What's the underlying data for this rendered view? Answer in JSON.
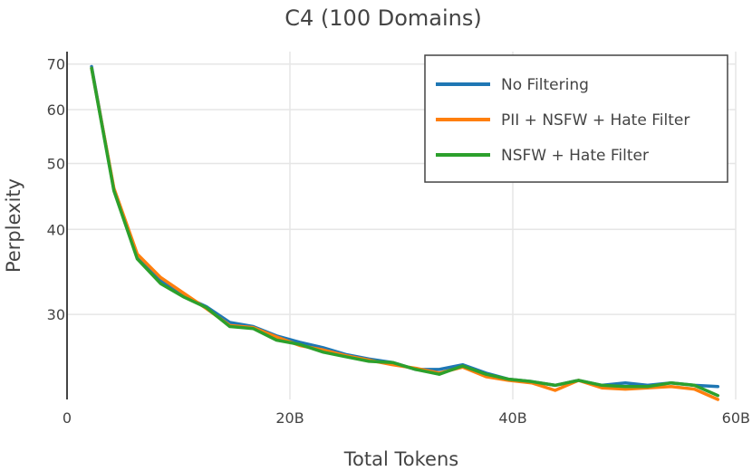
{
  "chart_data": {
    "type": "line",
    "title": "C4 (100 Domains)",
    "xlabel": "Total Tokens",
    "ylabel": "Perplexity",
    "x_unit_label": "B",
    "xlim": [
      0,
      60
    ],
    "ylim": [
      22.5,
      73
    ],
    "y_scale": "log",
    "x_ticks": [
      0,
      20,
      40,
      60
    ],
    "x_tick_labels": [
      "0",
      "20B",
      "40B",
      "60B"
    ],
    "y_ticks": [
      30,
      40,
      50,
      60,
      70
    ],
    "y_tick_labels": [
      "30",
      "40",
      "50",
      "60",
      "70"
    ],
    "grid": true,
    "legend_position": "top-right",
    "x": [
      2.2,
      4.2,
      6.3,
      8.4,
      10.5,
      12.5,
      14.6,
      16.7,
      18.8,
      20.9,
      23.0,
      25.0,
      27.1,
      29.2,
      31.3,
      33.4,
      35.5,
      37.6,
      39.6,
      41.7,
      43.8,
      45.9,
      48.0,
      50.1,
      52.1,
      54.2,
      56.3,
      58.4
    ],
    "series": [
      {
        "name": "No Filtering",
        "color": "#1f77b4",
        "values": [
          69.4,
          45.8,
          36.4,
          33.6,
          31.9,
          30.8,
          29.2,
          28.8,
          27.9,
          27.3,
          26.8,
          26.2,
          25.8,
          25.5,
          24.9,
          24.9,
          25.3,
          24.6,
          24.1,
          23.9,
          23.6,
          24.0,
          23.6,
          23.8,
          23.6,
          23.8,
          23.6,
          23.5
        ]
      },
      {
        "name": "PII + NSFW + Hate Filter",
        "color": "#ff7f0e",
        "values": [
          69.0,
          46.0,
          36.8,
          34.0,
          32.2,
          30.6,
          28.9,
          28.7,
          27.8,
          27.0,
          26.6,
          26.1,
          25.7,
          25.3,
          25.0,
          24.6,
          25.1,
          24.3,
          24.0,
          23.8,
          23.2,
          24.0,
          23.4,
          23.3,
          23.4,
          23.5,
          23.3,
          22.5
        ]
      },
      {
        "name": "NSFW + Hate Filter",
        "color": "#2ca02c",
        "values": [
          69.0,
          45.6,
          36.2,
          33.3,
          31.8,
          30.7,
          28.8,
          28.6,
          27.5,
          27.1,
          26.4,
          26.0,
          25.6,
          25.5,
          24.9,
          24.5,
          25.2,
          24.5,
          24.1,
          23.9,
          23.6,
          24.0,
          23.6,
          23.5,
          23.5,
          23.8,
          23.6,
          22.8
        ]
      }
    ]
  }
}
